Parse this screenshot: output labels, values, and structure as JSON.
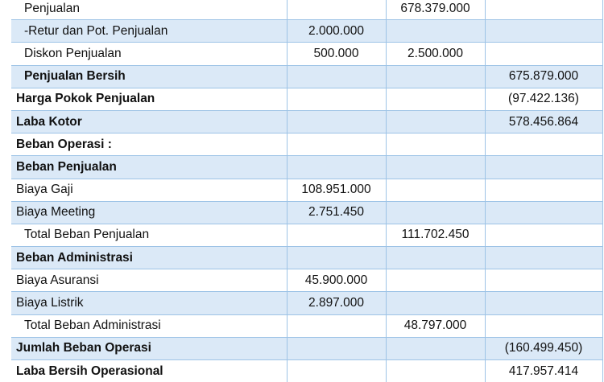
{
  "rows": [
    {
      "label": "Penjualan",
      "col1": "",
      "col2": "678.379.000",
      "col3": "",
      "bold": false,
      "indent": 1
    },
    {
      "label": "-Retur dan Pot. Penjualan",
      "col1": "2.000.000",
      "col2": "",
      "col3": "",
      "bold": false,
      "indent": 1
    },
    {
      "label": "Diskon Penjualan",
      "col1": "500.000",
      "col2": "2.500.000",
      "col3": "",
      "bold": false,
      "indent": 1
    },
    {
      "label": "Penjualan Bersih",
      "col1": "",
      "col2": "",
      "col3": "675.879.000",
      "bold": true,
      "indent": 1
    },
    {
      "label": "Harga Pokok Penjualan",
      "col1": "",
      "col2": "",
      "col3": "(97.422.136)",
      "bold": true,
      "indent": 0
    },
    {
      "label": "Laba Kotor",
      "col1": "",
      "col2": "",
      "col3": "578.456.864",
      "bold": true,
      "indent": 0
    },
    {
      "label": "Beban Operasi :",
      "col1": "",
      "col2": "",
      "col3": "",
      "bold": true,
      "indent": 0
    },
    {
      "label": "Beban Penjualan",
      "col1": "",
      "col2": "",
      "col3": "",
      "bold": true,
      "indent": 0
    },
    {
      "label": "Biaya Gaji",
      "col1": "108.951.000",
      "col2": "",
      "col3": "",
      "bold": false,
      "indent": 0
    },
    {
      "label": "Biaya Meeting",
      "col1": "2.751.450",
      "col2": "",
      "col3": "",
      "bold": false,
      "indent": 0
    },
    {
      "label": "Total Beban Penjualan",
      "col1": "",
      "col2": "111.702.450",
      "col3": "",
      "bold": false,
      "indent": 1
    },
    {
      "label": "Beban Administrasi",
      "col1": "",
      "col2": "",
      "col3": "",
      "bold": true,
      "indent": 0
    },
    {
      "label": "Biaya Asuransi",
      "col1": "45.900.000",
      "col2": "",
      "col3": "",
      "bold": false,
      "indent": 0
    },
    {
      "label": "Biaya Listrik",
      "col1": "2.897.000",
      "col2": "",
      "col3": "",
      "bold": false,
      "indent": 0
    },
    {
      "label": "Total Beban Administrasi",
      "col1": "",
      "col2": "48.797.000",
      "col3": "",
      "bold": false,
      "indent": 1
    },
    {
      "label": "Jumlah Beban Operasi",
      "col1": "",
      "col2": "",
      "col3": "(160.499.450)",
      "bold": true,
      "indent": 0
    },
    {
      "label": "Laba Bersih Operasional",
      "col1": "",
      "col2": "",
      "col3": "417.957.414",
      "bold": true,
      "indent": 0
    }
  ]
}
